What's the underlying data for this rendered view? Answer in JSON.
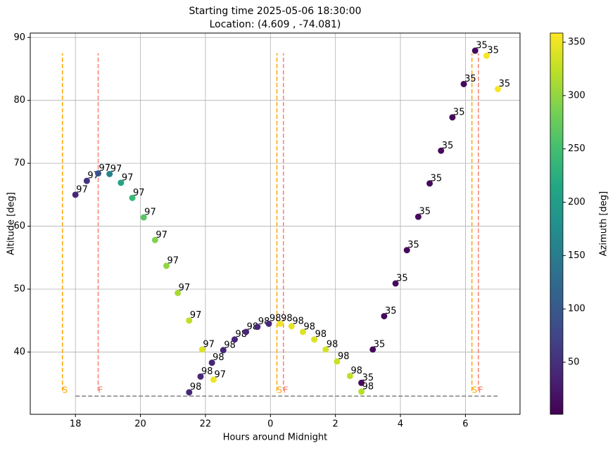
{
  "chart_data": {
    "type": "scatter",
    "title": [
      "Starting time 2025-05-06 18:30:00",
      "Location: (4.609 , -74.081)"
    ],
    "xlabel": "Hours around Midnight",
    "ylabel": "Altitude [deg]",
    "xlim": [
      16.61,
      31.68
    ],
    "ylim": [
      30.1,
      90.7
    ],
    "xticks": [
      18,
      20,
      22,
      {
        "value": 24,
        "label": "0"
      },
      {
        "value": 26,
        "label": "2"
      },
      {
        "value": 28,
        "label": "4"
      },
      {
        "value": 30,
        "label": "6"
      }
    ],
    "yticks": [
      40,
      50,
      60,
      70,
      80,
      90
    ],
    "grid": true,
    "series": [
      {
        "name": "97",
        "x": [
          18.0,
          18.35,
          18.7,
          19.05,
          19.4,
          19.75,
          20.1,
          20.45,
          20.8,
          21.15,
          21.5,
          21.9,
          22.25
        ],
        "values": [
          65.0,
          67.2,
          68.4,
          68.3,
          66.9,
          64.5,
          61.4,
          57.8,
          53.7,
          49.4,
          45.0,
          40.4,
          35.6
        ],
        "azimuth": [
          40,
          55,
          90,
          160,
          210,
          240,
          265,
          290,
          300,
          310,
          325,
          340,
          350
        ]
      },
      {
        "name": "98",
        "x": [
          21.5,
          21.85,
          22.2,
          22.55,
          22.9,
          23.25,
          23.6,
          23.95,
          24.3,
          24.65,
          25.0,
          25.35,
          25.7,
          26.05,
          26.45,
          26.8
        ],
        "values": [
          33.6,
          36.1,
          38.3,
          40.3,
          42.0,
          43.2,
          44.0,
          44.5,
          44.5,
          44.1,
          43.2,
          42.0,
          40.4,
          38.5,
          36.2,
          33.7
        ],
        "azimuth": [
          40,
          40,
          40,
          40,
          40,
          40,
          40,
          40,
          350,
          345,
          340,
          338,
          335,
          330,
          325,
          320
        ]
      },
      {
        "name": "35",
        "x": [
          26.8,
          27.15,
          27.5,
          27.85,
          28.2,
          28.55,
          28.9,
          29.25,
          29.6,
          29.95,
          30.3,
          30.65,
          31.0
        ],
        "values": [
          35.1,
          40.4,
          45.7,
          50.9,
          56.2,
          61.5,
          66.8,
          72.0,
          77.3,
          82.6,
          87.9,
          87.1,
          81.8
        ],
        "azimuth": [
          10,
          10,
          10,
          10,
          10,
          10,
          10,
          10,
          10,
          10,
          10,
          355,
          355
        ]
      }
    ],
    "markers": {
      "ymin": 33.8,
      "ymax": 87.5,
      "lines": [
        {
          "x": 17.6,
          "label": "S",
          "color": "#ffa500"
        },
        {
          "x": 18.7,
          "label": "F",
          "color": "#fa8072"
        },
        {
          "x": 24.2,
          "label": "S",
          "color": "#ffa500"
        },
        {
          "x": 24.4,
          "label": "F",
          "color": "#fa8072"
        },
        {
          "x": 30.2,
          "label": "S",
          "color": "#ffa500"
        },
        {
          "x": 30.4,
          "label": "F",
          "color": "#fa8072"
        }
      ]
    },
    "horizon": {
      "y": 33.0,
      "xmin": 18,
      "xmax": 31,
      "color": "#808080"
    },
    "colorbar": {
      "label": "Azimuth [deg]",
      "lim": [
        1.2,
        358.6
      ],
      "ticks": [
        50,
        100,
        150,
        200,
        250,
        300,
        350
      ]
    }
  }
}
